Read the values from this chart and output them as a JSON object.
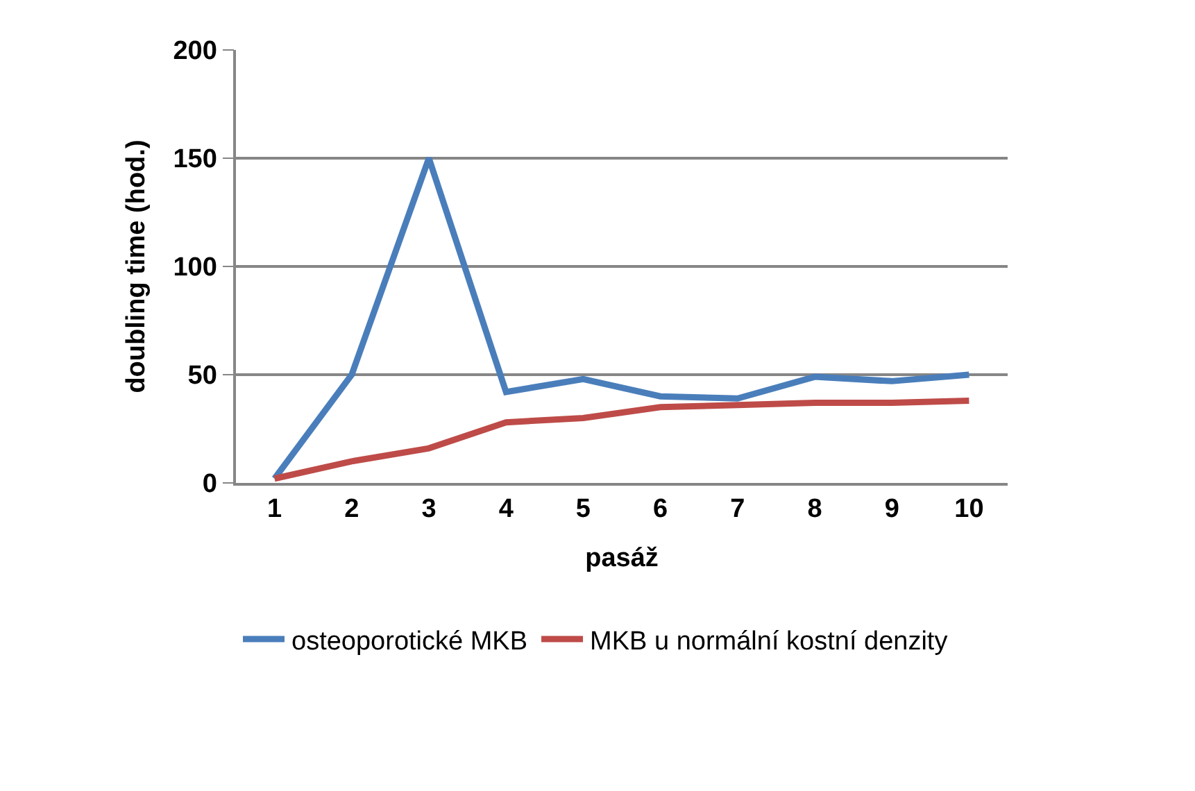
{
  "chart_data": {
    "type": "line",
    "xlabel": "pasáž",
    "ylabel": "doubling time (hod.)",
    "categories": [
      "1",
      "2",
      "3",
      "4",
      "5",
      "6",
      "7",
      "8",
      "9",
      "10"
    ],
    "series": [
      {
        "name": "osteoporotické MKB",
        "color": "#4a7ebb",
        "values": [
          2,
          50,
          150,
          42,
          48,
          40,
          39,
          49,
          47,
          50
        ]
      },
      {
        "name": "MKB u normální kostní denzity",
        "color": "#be4b48",
        "values": [
          2,
          10,
          16,
          28,
          30,
          35,
          36,
          37,
          37,
          38
        ]
      }
    ],
    "ylim": [
      0,
      200
    ],
    "yticks": [
      0,
      50,
      100,
      150,
      200
    ],
    "grid": "y",
    "legend": "bottom",
    "marker": "none",
    "line_style": "solid"
  }
}
